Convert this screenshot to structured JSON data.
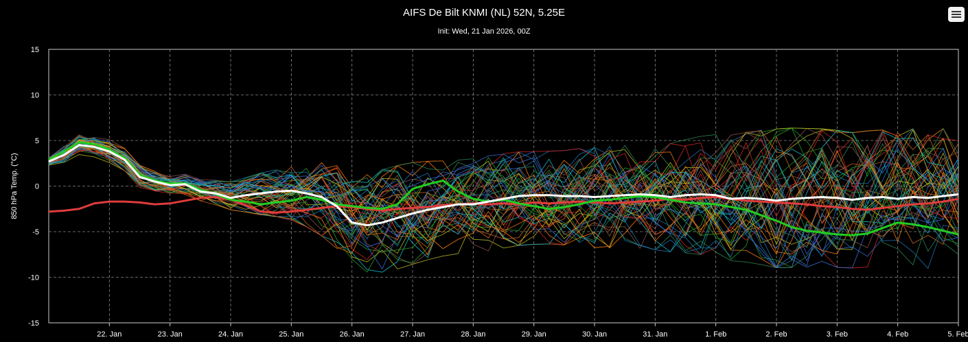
{
  "header": {
    "title": "AIFS De Bilt KNMI (NL) 52N, 5.25E",
    "subtitle": "Init: Wed, 21 Jan 2026, 00Z",
    "menu_icon": "hamburger-menu-icon"
  },
  "chart_data": {
    "type": "line",
    "ylabel": "850 hPa Temp. (°C)",
    "ylim": [
      -15,
      15
    ],
    "y_ticks": [
      15,
      10,
      5,
      0,
      -5,
      -10,
      -15
    ],
    "x_start": "2026-01-21T00:00Z",
    "x_end": "2026-02-05T00:00Z",
    "x_step_hours": 6,
    "x_ticks": [
      {
        "date": "2026-01-22",
        "label": "22. Jan"
      },
      {
        "date": "2026-01-23",
        "label": "23. Jan"
      },
      {
        "date": "2026-01-24",
        "label": "24. Jan"
      },
      {
        "date": "2026-01-25",
        "label": "25. Jan"
      },
      {
        "date": "2026-01-26",
        "label": "26. Jan"
      },
      {
        "date": "2026-01-27",
        "label": "27. Jan"
      },
      {
        "date": "2026-01-28",
        "label": "28. Jan"
      },
      {
        "date": "2026-01-29",
        "label": "29. Jan"
      },
      {
        "date": "2026-01-30",
        "label": "30. Jan"
      },
      {
        "date": "2026-01-31",
        "label": "31. Jan"
      },
      {
        "date": "2026-02-01",
        "label": "1. Feb"
      },
      {
        "date": "2026-02-02",
        "label": "2. Feb"
      },
      {
        "date": "2026-02-03",
        "label": "3. Feb"
      },
      {
        "date": "2026-02-04",
        "label": "4. Feb"
      },
      {
        "date": "2026-02-05",
        "label": "5. Feb"
      }
    ],
    "grid": true,
    "legend": "none",
    "colors": {
      "background": "#000000",
      "mean": "#ffffff",
      "control": "#22cc22",
      "climate": "#e03c3c",
      "member_palette": [
        "#1f77b4",
        "#2ca02c",
        "#ff7f0e",
        "#d62728",
        "#17becf",
        "#bcbd22",
        "#8c564b",
        "#3a6fd8",
        "#2e8b57",
        "#d2691e"
      ]
    },
    "series": [
      {
        "role": "mean",
        "values": [
          2.7,
          3.4,
          4.5,
          4.3,
          3.8,
          2.9,
          1.0,
          0.5,
          0.1,
          0.2,
          -0.6,
          -0.8,
          -1.3,
          -1.0,
          -0.8,
          -0.6,
          -0.5,
          -0.8,
          -1.2,
          -2.2,
          -4.0,
          -4.3,
          -4.0,
          -3.5,
          -3.0,
          -2.6,
          -2.3,
          -2.0,
          -2.0,
          -1.7,
          -1.4,
          -1.1,
          -1.0,
          -1.0,
          -1.1,
          -1.1,
          -1.2,
          -1.1,
          -1.0,
          -0.9,
          -1.0,
          -1.2,
          -1.0,
          -0.9,
          -1.0,
          -1.4,
          -1.3,
          -1.4,
          -1.6,
          -1.4,
          -1.3,
          -1.2,
          -1.3,
          -1.5,
          -1.3,
          -1.2,
          -1.4,
          -1.2,
          -1.3,
          -1.1,
          -0.9
        ]
      },
      {
        "role": "control",
        "values": [
          2.9,
          3.8,
          4.8,
          4.6,
          4.0,
          3.1,
          1.2,
          0.6,
          0.3,
          0.3,
          -0.4,
          -0.9,
          -1.5,
          -1.7,
          -2.0,
          -1.8,
          -1.6,
          -1.2,
          -1.5,
          -2.0,
          -2.2,
          -2.4,
          -2.5,
          -2.0,
          -0.3,
          0.2,
          0.6,
          -0.6,
          -1.4,
          -1.7,
          -1.5,
          -1.9,
          -2.2,
          -2.5,
          -2.3,
          -2.0,
          -1.6,
          -1.5,
          -1.3,
          -1.1,
          -1.2,
          -1.5,
          -1.8,
          -1.9,
          -2.0,
          -2.3,
          -2.6,
          -3.2,
          -3.8,
          -4.5,
          -4.9,
          -5.1,
          -5.3,
          -5.4,
          -5.2,
          -4.6,
          -4.0,
          -4.2,
          -4.5,
          -4.9,
          -5.3
        ]
      },
      {
        "role": "climate",
        "values": [
          -2.8,
          -2.7,
          -2.5,
          -1.9,
          -1.7,
          -1.7,
          -1.8,
          -2.0,
          -1.9,
          -1.6,
          -1.3,
          -1.2,
          -1.5,
          -2.1,
          -2.8,
          -2.9,
          -2.8,
          -2.6,
          -2.4,
          -2.2,
          -2.3,
          -2.5,
          -2.7,
          -2.5,
          -2.4,
          -2.3,
          -2.1,
          -2.0,
          -1.9,
          -2.0,
          -1.9,
          -2.0,
          -1.8,
          -1.9,
          -1.8,
          -1.7,
          -1.8,
          -1.9,
          -1.8,
          -1.7,
          -1.6,
          -1.4,
          -1.5,
          -1.3,
          -1.2,
          -1.4,
          -1.6,
          -1.7,
          -1.8,
          -1.9,
          -2.0,
          -2.2,
          -2.3,
          -2.5,
          -2.6,
          -2.4,
          -2.2,
          -2.0,
          -1.9,
          -1.7,
          -1.4
        ]
      }
    ],
    "members": {
      "count": 50,
      "spread_upper": [
        3.5,
        4.5,
        5.8,
        5.9,
        5.3,
        4.3,
        2.5,
        1.8,
        1.4,
        1.4,
        1.0,
        0.9,
        0.9,
        1.2,
        1.6,
        1.8,
        2.1,
        2.4,
        2.8,
        2.6,
        2.4,
        2.5,
        2.7,
        3.0,
        3.2,
        3.2,
        3.1,
        3.0,
        3.3,
        3.6,
        3.8,
        3.9,
        3.9,
        4.0,
        4.2,
        4.5,
        4.7,
        4.8,
        4.8,
        4.9,
        5.0,
        5.2,
        5.6,
        6.0,
        6.3,
        6.5,
        6.8,
        7.2,
        7.5,
        7.4,
        7.2,
        7.0,
        6.8,
        6.6,
        6.7,
        6.8,
        6.9,
        7.0,
        7.0,
        6.8,
        6.5
      ],
      "spread_lower": [
        1.9,
        2.3,
        3.4,
        3.2,
        2.5,
        1.6,
        -0.2,
        -0.6,
        -0.9,
        -1.1,
        -1.6,
        -2.1,
        -2.6,
        -3.0,
        -3.5,
        -3.9,
        -4.5,
        -5.2,
        -6.2,
        -7.5,
        -8.9,
        -9.6,
        -9.8,
        -9.6,
        -9.2,
        -8.8,
        -8.5,
        -8.4,
        -8.2,
        -8.0,
        -7.7,
        -7.5,
        -7.4,
        -7.3,
        -7.3,
        -7.4,
        -7.5,
        -7.6,
        -7.7,
        -7.8,
        -7.9,
        -8.0,
        -8.2,
        -8.4,
        -8.6,
        -8.8,
        -9.0,
        -9.2,
        -9.4,
        -9.6,
        -9.7,
        -9.8,
        -9.9,
        -9.9,
        -9.9,
        -9.8,
        -9.7,
        -9.8,
        -10.0,
        -10.2,
        -10.4
      ]
    }
  }
}
